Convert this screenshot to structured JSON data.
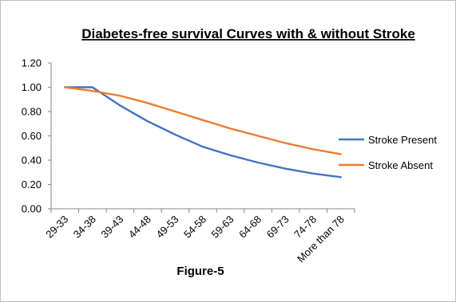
{
  "chart_data": {
    "type": "line",
    "title": "Diabetes-free  survival  Curves with & without Stroke",
    "xlabel": "Figure-5",
    "ylabel": "",
    "categories": [
      "29-33",
      "34-38",
      "39-43",
      "44-48",
      "49-53",
      "54-58",
      "59-63",
      "64-68",
      "69-73",
      "74-78",
      "More than 78"
    ],
    "ylim": [
      0,
      1.2
    ],
    "yticks": [
      "0.00",
      "0.20",
      "0.40",
      "0.60",
      "0.80",
      "1.00",
      "1.20"
    ],
    "grid": false,
    "legend_position": "right",
    "series": [
      {
        "name": "Stroke Present",
        "color": "#4472C4",
        "values": [
          1.0,
          1.0,
          0.85,
          0.72,
          0.61,
          0.51,
          0.44,
          0.38,
          0.33,
          0.29,
          0.26
        ]
      },
      {
        "name": "Stroke Absent",
        "color": "#ED7D31",
        "values": [
          1.0,
          0.97,
          0.93,
          0.87,
          0.8,
          0.73,
          0.66,
          0.6,
          0.54,
          0.49,
          0.45
        ]
      }
    ]
  }
}
